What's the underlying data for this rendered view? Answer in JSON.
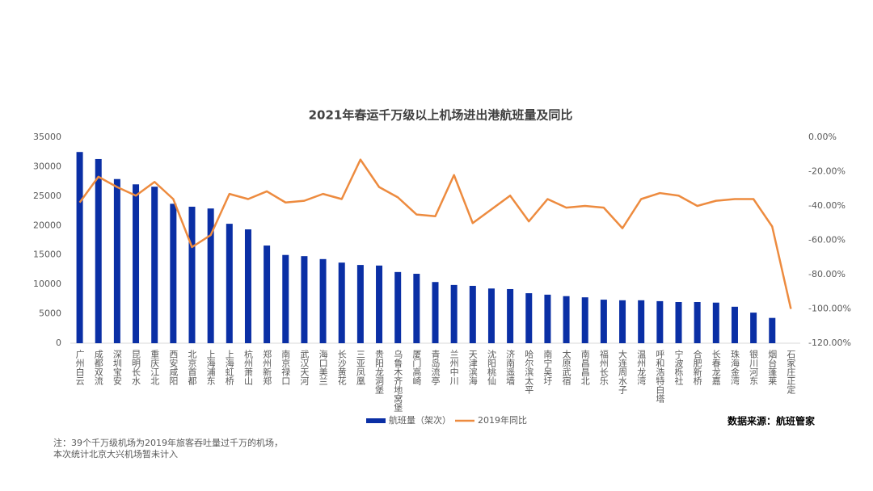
{
  "chart_data": {
    "type": "bar-line",
    "title": "2021年春运千万级以上机场进出港航班量及同比",
    "categories": [
      "广州白云",
      "成都双流",
      "深圳宝安",
      "昆明长水",
      "重庆江北",
      "西安咸阳",
      "北京首都",
      "上海浦东",
      "上海虹桥",
      "杭州萧山",
      "郑州新郑",
      "南京禄口",
      "武汉天河",
      "海口美兰",
      "长沙黄花",
      "三亚凤凰",
      "贵阳龙洞堡",
      "乌鲁木齐地窝堡",
      "厦门高崎",
      "青岛流亭",
      "兰州中川",
      "天津滨海",
      "沈阳桃仙",
      "济南遥墙",
      "哈尔滨太平",
      "南宁吴圩",
      "太原武宿",
      "南昌昌北",
      "福州长乐",
      "大连周水子",
      "温州龙湾",
      "呼和浩特白塔",
      "宁波栎社",
      "合肥新桥",
      "长春龙嘉",
      "珠海金湾",
      "银川河东",
      "烟台蓬莱",
      "石家庄正定"
    ],
    "series": [
      {
        "name": "航班量（架次）",
        "color": "#0a2fa5",
        "type": "bar",
        "values": [
          32500,
          31300,
          27900,
          27000,
          26600,
          23700,
          23200,
          22900,
          20300,
          19350,
          16600,
          15000,
          14800,
          14300,
          13700,
          13300,
          13200,
          12100,
          11800,
          10400,
          9900,
          9750,
          9300,
          9200,
          8500,
          8250,
          8000,
          7800,
          7400,
          7300,
          7300,
          7150,
          7000,
          7000,
          6900,
          6200,
          5200,
          4300,
          null
        ]
      },
      {
        "name": "2019年同比",
        "color": "#ed8b3f",
        "type": "line",
        "axis": "y2",
        "values": [
          -38,
          -23,
          -29,
          -34,
          -26,
          -36,
          -64,
          -57,
          -33,
          -36,
          -31.5,
          -38,
          -37,
          -33,
          -36,
          -13,
          -29,
          -35,
          -45,
          -46,
          -22,
          -50,
          -42,
          -34,
          -49,
          -36,
          -41,
          -40,
          -41,
          -53,
          -36,
          -32.5,
          -34,
          -40,
          -37,
          -36,
          -36,
          -52,
          -100
        ]
      }
    ],
    "ylim": [
      0,
      35000
    ],
    "yticks": [
      0,
      5000,
      10000,
      15000,
      20000,
      25000,
      30000,
      35000
    ],
    "y2lim": [
      -120,
      0
    ],
    "y2ticks": [
      {
        "value": 0,
        "label": "0.00%"
      },
      {
        "value": -20,
        "label": "-20.00%"
      },
      {
        "value": -40,
        "label": "-40.00%"
      },
      {
        "value": -60,
        "label": "-60.00%"
      },
      {
        "value": -80,
        "label": "-80.00%"
      },
      {
        "value": -100,
        "label": "-100.00%"
      },
      {
        "value": -120,
        "label": "-120.00%"
      }
    ],
    "source": "数据来源：航班管家",
    "notes": [
      "注：39个千万级机场为2019年旅客吞吐量过千万的机场，",
      "本次统计北京大兴机场暂未计入"
    ]
  }
}
